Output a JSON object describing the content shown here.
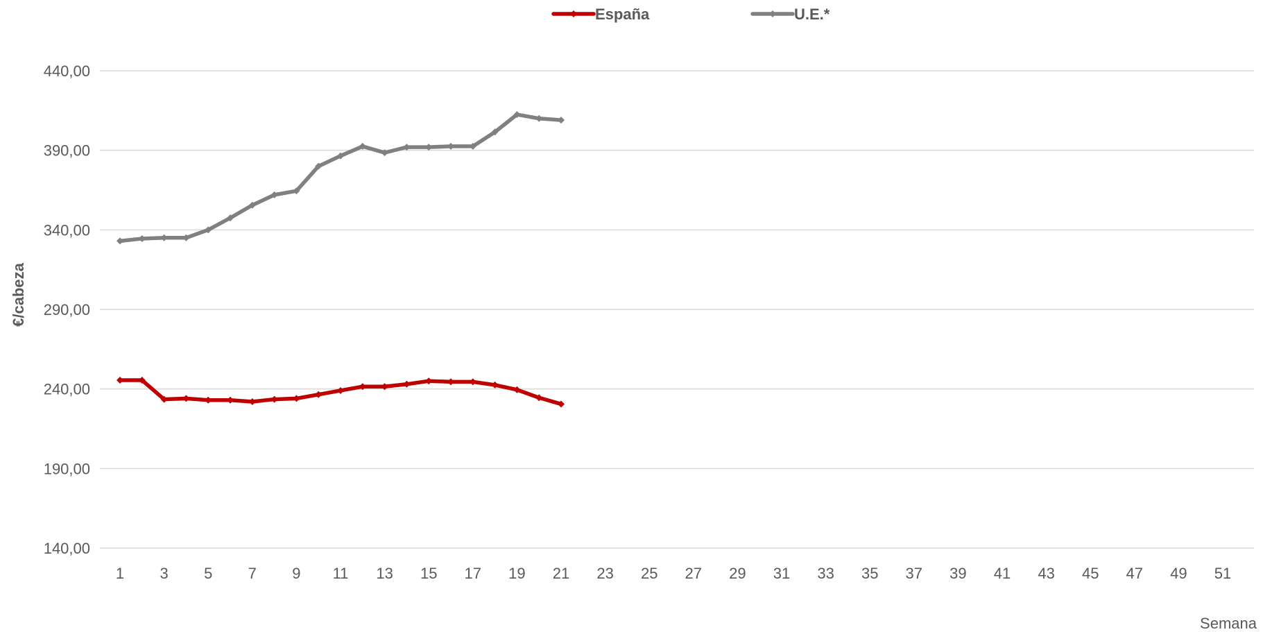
{
  "chart_data": {
    "type": "line",
    "title": "",
    "xlabel": "Semana",
    "ylabel": "€/cabeza",
    "ylim": [
      140,
      440
    ],
    "yticks": [
      140,
      190,
      240,
      290,
      340,
      390,
      440
    ],
    "ytick_labels": [
      "140,00",
      "190,00",
      "240,00",
      "290,00",
      "340,00",
      "390,00",
      "440,00"
    ],
    "xlim": [
      1,
      52
    ],
    "xticks": [
      1,
      3,
      5,
      7,
      9,
      11,
      13,
      15,
      17,
      19,
      21,
      23,
      25,
      27,
      29,
      31,
      33,
      35,
      37,
      39,
      41,
      43,
      45,
      47,
      49,
      51
    ],
    "xtick_labels": [
      "1",
      "3",
      "5",
      "7",
      "9",
      "11",
      "13",
      "15",
      "17",
      "19",
      "21",
      "23",
      "25",
      "27",
      "29",
      "31",
      "33",
      "35",
      "37",
      "39",
      "41",
      "43",
      "45",
      "47",
      "49",
      "51"
    ],
    "grid": true,
    "legend_position": "top-center",
    "series": [
      {
        "name": "España",
        "color": "#c00000",
        "x": [
          1,
          2,
          3,
          4,
          5,
          6,
          7,
          8,
          9,
          10,
          11,
          12,
          13,
          14,
          15,
          16,
          17,
          18,
          19,
          20,
          21
        ],
        "values": [
          245.5,
          245.5,
          233.5,
          234.0,
          233.0,
          233.0,
          232.0,
          233.5,
          234.0,
          236.5,
          239.0,
          241.5,
          241.5,
          243.0,
          245.0,
          244.5,
          244.5,
          242.5,
          239.5,
          234.5,
          230.5
        ]
      },
      {
        "name": "U.E.*",
        "color": "#808080",
        "x": [
          1,
          2,
          3,
          4,
          5,
          6,
          7,
          8,
          9,
          10,
          11,
          12,
          13,
          14,
          15,
          16,
          17,
          18,
          19,
          20,
          21
        ],
        "values": [
          333.0,
          334.5,
          335.0,
          335.0,
          340.0,
          347.5,
          355.5,
          362.0,
          364.5,
          380.0,
          386.5,
          392.5,
          388.5,
          392.0,
          392.0,
          392.5,
          392.5,
          401.5,
          412.5,
          410.0,
          409.0
        ]
      }
    ]
  }
}
